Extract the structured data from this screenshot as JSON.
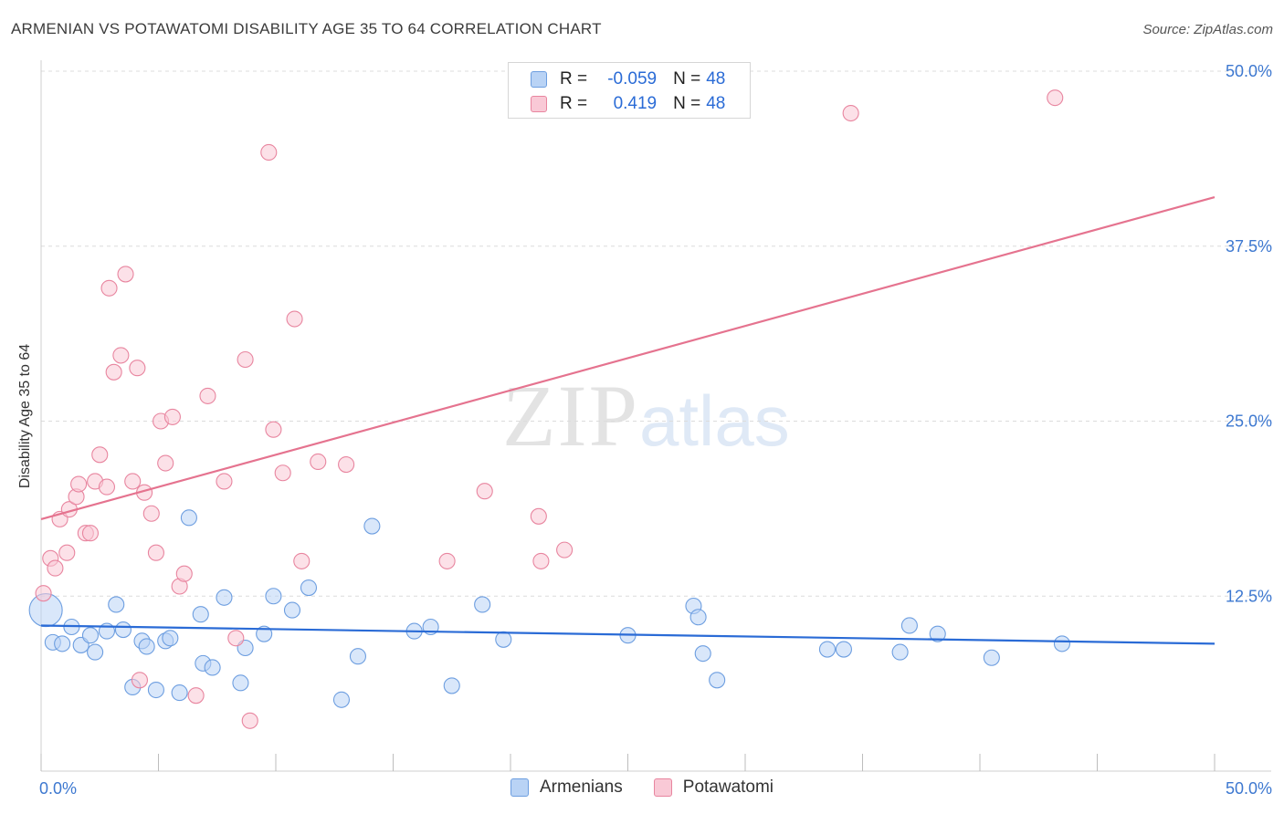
{
  "title": "ARMENIAN VS POTAWATOMI DISABILITY AGE 35 TO 64 CORRELATION CHART",
  "source": "Source: ZipAtlas.com",
  "watermark": {
    "zip": "ZIP",
    "atlas": "atlas"
  },
  "stats": [
    {
      "label": "R =",
      "r": "-0.059",
      "n_label": "N =",
      "n": "48",
      "fill": "#b9d3f5",
      "stroke": "#6d9ee0"
    },
    {
      "label": "R =",
      "r": "0.419",
      "n_label": "N =",
      "n": "48",
      "fill": "#f9c9d6",
      "stroke": "#e8859f"
    }
  ],
  "legend": [
    {
      "label": "Armenians",
      "fill": "#b9d3f5",
      "stroke": "#6d9ee0"
    },
    {
      "label": "Potawatomi",
      "fill": "#f9c9d6",
      "stroke": "#e8859f"
    }
  ],
  "chart_data": {
    "type": "scatter",
    "title": "ARMENIAN VS POTAWATOMI DISABILITY AGE 35 TO 64 CORRELATION CHART",
    "xlabel": "",
    "ylabel": "Disability Age 35 to 64",
    "xlim": [
      0,
      50
    ],
    "ylim": [
      0,
      50
    ],
    "x_tick_labels": [
      "0.0%",
      "50.0%"
    ],
    "y_ticks": [
      12.5,
      25.0,
      37.5,
      50.0
    ],
    "y_tick_labels": [
      "12.5%",
      "25.0%",
      "37.5%",
      "50.0%"
    ],
    "grid": true,
    "series": [
      {
        "name": "Armenians",
        "color": "#6d9ee0",
        "fill": "#b9d3f5",
        "line_color": "#2a6bd6",
        "trend": {
          "x": [
            0,
            50
          ],
          "y": [
            10.4,
            9.1
          ]
        },
        "points": [
          [
            0.2,
            11.5,
            2
          ],
          [
            0.5,
            9.2,
            1
          ],
          [
            0.9,
            9.1,
            1
          ],
          [
            1.3,
            10.3,
            1
          ],
          [
            1.7,
            9.0,
            1
          ],
          [
            2.1,
            9.7,
            1
          ],
          [
            2.3,
            8.5,
            1
          ],
          [
            2.8,
            10.0,
            1
          ],
          [
            3.2,
            11.9,
            1
          ],
          [
            3.5,
            10.1,
            1
          ],
          [
            3.9,
            6.0,
            1
          ],
          [
            4.3,
            9.3,
            1
          ],
          [
            4.5,
            8.9,
            1
          ],
          [
            4.9,
            5.8,
            1
          ],
          [
            5.3,
            9.3,
            1
          ],
          [
            5.5,
            9.5,
            1
          ],
          [
            5.9,
            5.6,
            1
          ],
          [
            6.3,
            18.1,
            1
          ],
          [
            6.8,
            11.2,
            1
          ],
          [
            6.9,
            7.7,
            1
          ],
          [
            7.3,
            7.4,
            1
          ],
          [
            7.8,
            12.4,
            1
          ],
          [
            8.5,
            6.3,
            1
          ],
          [
            8.7,
            8.8,
            1
          ],
          [
            9.5,
            9.8,
            1
          ],
          [
            9.9,
            12.5,
            1
          ],
          [
            10.7,
            11.5,
            1
          ],
          [
            11.4,
            13.1,
            1
          ],
          [
            12.8,
            5.1,
            1
          ],
          [
            13.5,
            8.2,
            1
          ],
          [
            14.1,
            17.5,
            1
          ],
          [
            15.9,
            10.0,
            1
          ],
          [
            16.6,
            10.3,
            1
          ],
          [
            17.5,
            6.1,
            1
          ],
          [
            18.8,
            11.9,
            1
          ],
          [
            19.7,
            9.4,
            1
          ],
          [
            25.0,
            9.7,
            1
          ],
          [
            27.8,
            11.8,
            1
          ],
          [
            28.0,
            11.0,
            1
          ],
          [
            28.2,
            8.4,
            1
          ],
          [
            28.8,
            6.5,
            1
          ],
          [
            33.5,
            8.7,
            1
          ],
          [
            34.2,
            8.7,
            1
          ],
          [
            36.6,
            8.5,
            1
          ],
          [
            37.0,
            10.4,
            1
          ],
          [
            38.2,
            9.8,
            1
          ],
          [
            40.5,
            8.1,
            1
          ],
          [
            43.5,
            9.1,
            1
          ]
        ]
      },
      {
        "name": "Potawatomi",
        "color": "#e8859f",
        "fill": "#f9c9d6",
        "line_color": "#e5738f",
        "trend": {
          "x": [
            0,
            50
          ],
          "y": [
            18.0,
            41.0
          ]
        },
        "points": [
          [
            0.1,
            12.7,
            1
          ],
          [
            0.4,
            15.2,
            1
          ],
          [
            0.6,
            14.5,
            1
          ],
          [
            0.8,
            18.0,
            1
          ],
          [
            1.1,
            15.6,
            1
          ],
          [
            1.2,
            18.7,
            1
          ],
          [
            1.5,
            19.6,
            1
          ],
          [
            1.6,
            20.5,
            1
          ],
          [
            1.9,
            17.0,
            1
          ],
          [
            2.1,
            17.0,
            1
          ],
          [
            2.3,
            20.7,
            1
          ],
          [
            2.5,
            22.6,
            1
          ],
          [
            2.8,
            20.3,
            1
          ],
          [
            2.9,
            34.5,
            1
          ],
          [
            3.1,
            28.5,
            1
          ],
          [
            3.4,
            29.7,
            1
          ],
          [
            3.6,
            35.5,
            1
          ],
          [
            3.9,
            20.7,
            1
          ],
          [
            4.1,
            28.8,
            1
          ],
          [
            4.2,
            6.5,
            1
          ],
          [
            4.4,
            19.9,
            1
          ],
          [
            4.7,
            18.4,
            1
          ],
          [
            4.9,
            15.6,
            1
          ],
          [
            5.1,
            25.0,
            1
          ],
          [
            5.3,
            22.0,
            1
          ],
          [
            5.6,
            25.3,
            1
          ],
          [
            5.9,
            13.2,
            1
          ],
          [
            6.1,
            14.1,
            1
          ],
          [
            6.6,
            5.4,
            1
          ],
          [
            7.1,
            26.8,
            1
          ],
          [
            7.8,
            20.7,
            1
          ],
          [
            8.3,
            9.5,
            1
          ],
          [
            8.7,
            29.4,
            1
          ],
          [
            8.9,
            3.6,
            1
          ],
          [
            9.7,
            44.2,
            1
          ],
          [
            9.9,
            24.4,
            1
          ],
          [
            10.3,
            21.3,
            1
          ],
          [
            10.8,
            32.3,
            1
          ],
          [
            11.1,
            15.0,
            1
          ],
          [
            11.8,
            22.1,
            1
          ],
          [
            13.0,
            21.9,
            1
          ],
          [
            17.3,
            15.0,
            1
          ],
          [
            18.9,
            20.0,
            1
          ],
          [
            21.2,
            18.2,
            1
          ],
          [
            21.3,
            15.0,
            1
          ],
          [
            22.3,
            15.8,
            1
          ],
          [
            34.5,
            47.0,
            1
          ],
          [
            43.2,
            48.1,
            1
          ]
        ]
      }
    ]
  }
}
